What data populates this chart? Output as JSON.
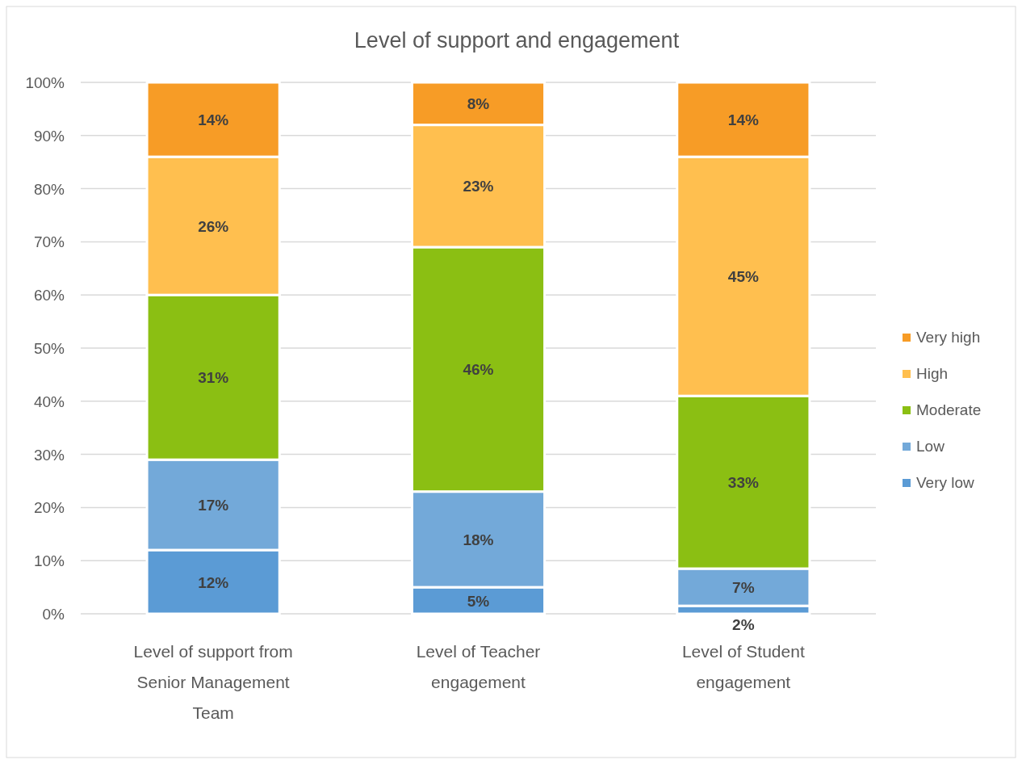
{
  "chart_data": {
    "type": "bar",
    "title": "Level of support and engagement",
    "stacked": true,
    "categories": [
      "Level of support from Senior Management Team",
      "Level of Teacher engagement",
      "Level of Student engagement"
    ],
    "series": [
      {
        "name": "Very low",
        "color": "#5b9bd5",
        "values": [
          12,
          5,
          1.5
        ],
        "value_labels": [
          "12%",
          "5%",
          "2%"
        ]
      },
      {
        "name": "Low",
        "color": "#73a9d9",
        "values": [
          17,
          18,
          7
        ],
        "value_labels": [
          "17%",
          "18%",
          "7%"
        ]
      },
      {
        "name": "Moderate",
        "color": "#8bbf13",
        "values": [
          31,
          46,
          32.5
        ],
        "value_labels": [
          "31%",
          "46%",
          "33%"
        ]
      },
      {
        "name": "High",
        "color": "#ffbf4f",
        "values": [
          26,
          23,
          45
        ],
        "value_labels": [
          "26%",
          "23%",
          "45%"
        ]
      },
      {
        "name": "Very high",
        "color": "#f79c26",
        "values": [
          14,
          8,
          14
        ],
        "value_labels": [
          "14%",
          "8%",
          "14%"
        ]
      }
    ],
    "ylim": [
      0,
      100
    ],
    "yticks": [
      {
        "value": 0,
        "label": "0%"
      },
      {
        "value": 10,
        "label": "10%"
      },
      {
        "value": 20,
        "label": "20%"
      },
      {
        "value": 30,
        "label": "30%"
      },
      {
        "value": 40,
        "label": "40%"
      },
      {
        "value": 50,
        "label": "50%"
      },
      {
        "value": 60,
        "label": "60%"
      },
      {
        "value": 70,
        "label": "70%"
      },
      {
        "value": 80,
        "label": "80%"
      },
      {
        "value": 90,
        "label": "90%"
      },
      {
        "value": 100,
        "label": "100%"
      }
    ],
    "grid": "y",
    "legend": "right"
  }
}
